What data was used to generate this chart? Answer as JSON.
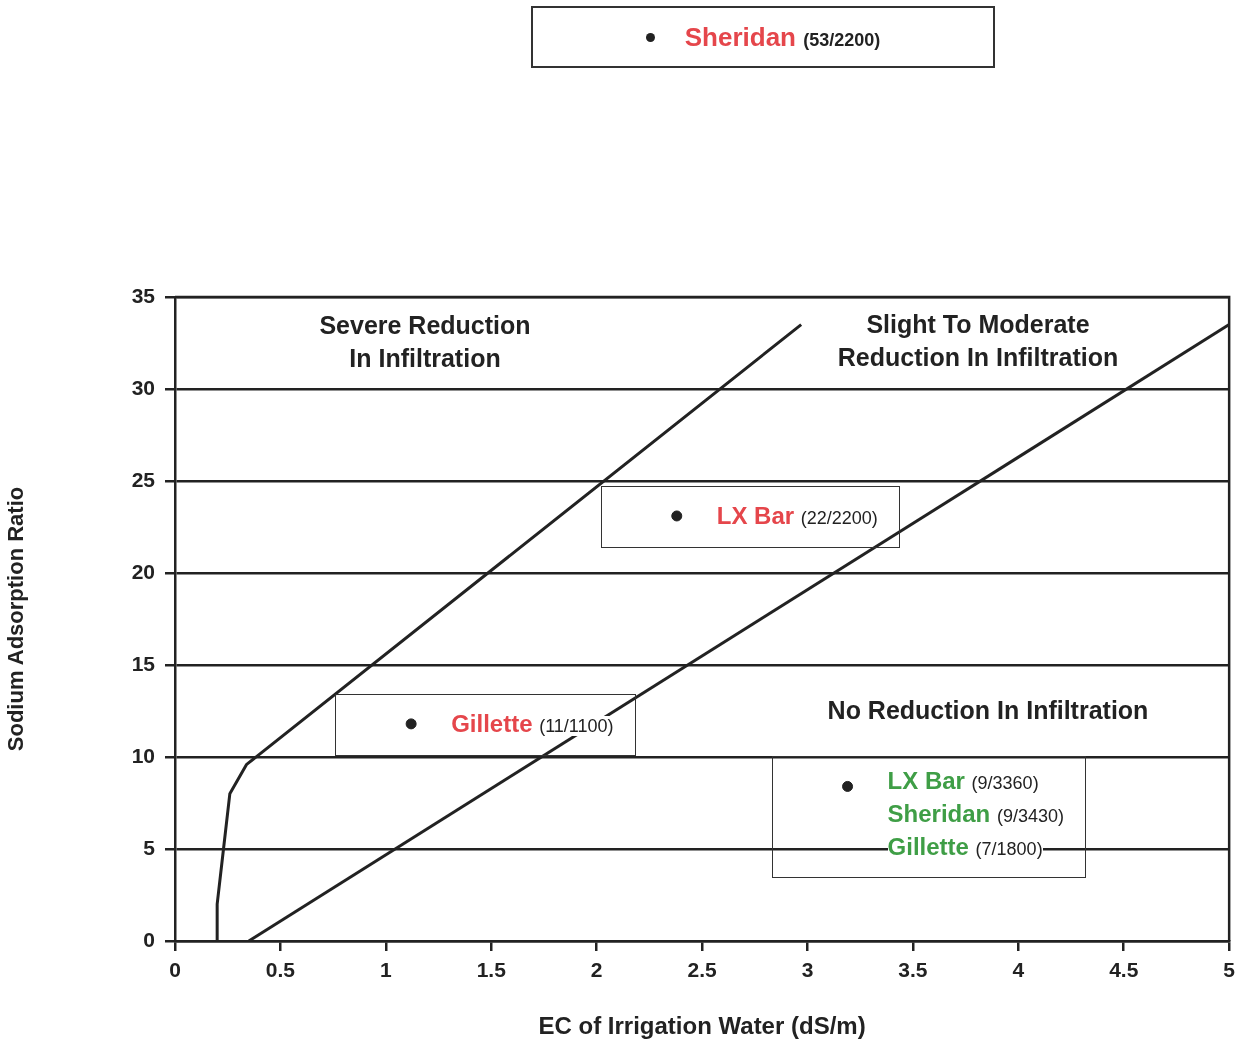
{
  "chart_data": {
    "type": "line",
    "xlabel": "EC of Irrigation Water (dS/m)",
    "ylabel": "Sodium Adsorption Ratio",
    "xlim": [
      0,
      5
    ],
    "xticks": [
      0,
      0.5,
      1,
      1.5,
      2,
      2.5,
      3,
      3.5,
      4,
      4.5,
      5
    ],
    "ylim": [
      0,
      35
    ],
    "yticks": [
      0,
      5,
      10,
      15,
      20,
      25,
      30,
      35
    ],
    "grid": "y",
    "legend": false,
    "marker": "none",
    "line_style": "solid",
    "series": [
      {
        "color": "#222222",
        "x": [
          0.2,
          0.2,
          0.23,
          0.26,
          0.34,
          2.97
        ],
        "values": [
          0,
          2,
          5,
          8,
          9.6,
          33.5
        ]
      },
      {
        "color": "#222222",
        "x": [
          0.35,
          5
        ],
        "values": [
          0,
          33.5
        ]
      },
      {
        "type": "scatter",
        "marker": "circle",
        "color": "#222222",
        "x": [
          2.38,
          1.12,
          3.19
        ],
        "values": [
          23.1,
          11.8,
          8.4
        ],
        "value_labels": [
          "LX Bar (22/2200)",
          "Gillette (11/1100)",
          "LX Bar (9/3360)\nSheridan (9/3430)\nGillette (7/1800)"
        ]
      }
    ],
    "annotations": [
      "Sheridan (53/2200)",
      "Severe Reduction\nIn Infiltration",
      "Slight To Moderate\nReduction In Infiltration",
      "No Reduction In Infiltration"
    ]
  }
}
